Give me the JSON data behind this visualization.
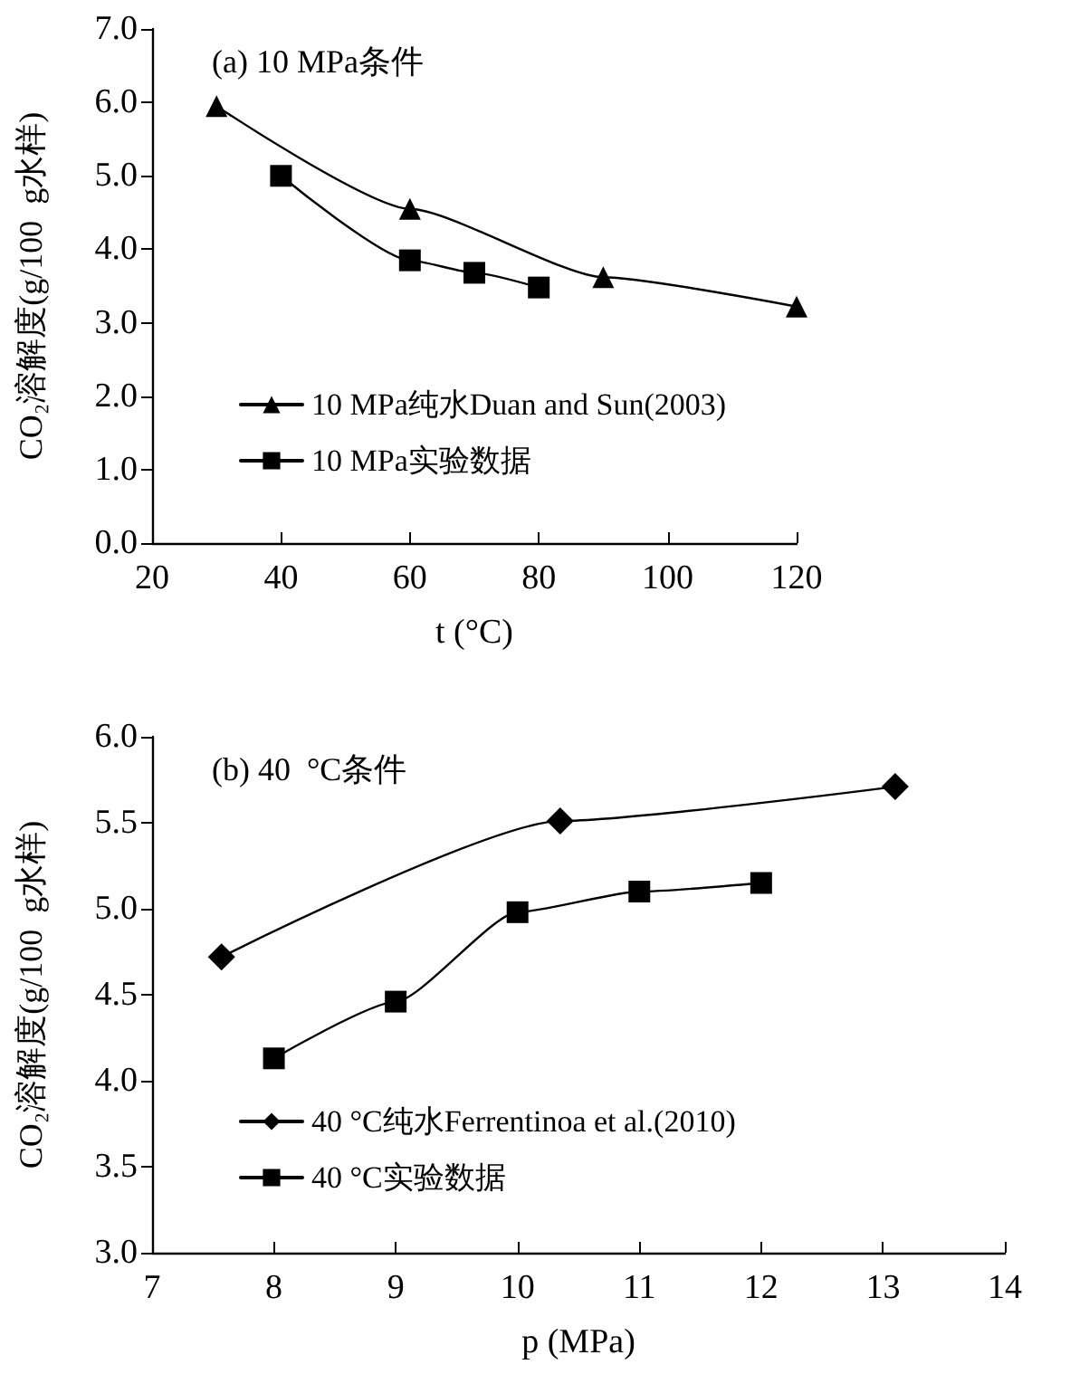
{
  "chart_data": [
    {
      "type": "line",
      "title": "(a) 10 MPa条件",
      "xlabel": "t (°C)",
      "ylabel": "CO₂溶解度(g/100  g水样)",
      "xlim": [
        20,
        120
      ],
      "xticks": [
        20,
        40,
        60,
        80,
        100,
        120
      ],
      "ylim": [
        0,
        7
      ],
      "yticks": [
        {
          "value": 0,
          "label": "0.0"
        },
        {
          "value": 1,
          "label": "1.0"
        },
        {
          "value": 2,
          "label": "2.0"
        },
        {
          "value": 3,
          "label": "3.0"
        },
        {
          "value": 4,
          "label": "4.0"
        },
        {
          "value": 5,
          "label": "5.0"
        },
        {
          "value": 6,
          "label": "6.0"
        },
        {
          "value": 7,
          "label": "7.0"
        }
      ],
      "grid": false,
      "legend": "bottom left",
      "line_style": "solid",
      "series": [
        {
          "name": "10 MPa纯水Duan and Sun(2003)",
          "color": "#000000",
          "marker": "triangle",
          "x": [
            30,
            60,
            90,
            120
          ],
          "values": [
            5.95,
            4.55,
            3.62,
            3.22
          ]
        },
        {
          "name": "10 MPa实验数据",
          "color": "#000000",
          "marker": "square",
          "x": [
            40,
            60,
            70,
            80
          ],
          "values": [
            5.0,
            3.85,
            3.68,
            3.48
          ]
        }
      ]
    },
    {
      "type": "line",
      "title": "(b) 40  °C条件",
      "xlabel": "p (MPa)",
      "ylabel": "CO₂溶解度(g/100  g水样)",
      "xlim": [
        7,
        14
      ],
      "xticks": [
        7,
        8,
        9,
        10,
        11,
        12,
        13,
        14
      ],
      "ylim": [
        3,
        6
      ],
      "yticks": [
        {
          "value": 3,
          "label": "3.0"
        },
        3.5,
        {
          "value": 4,
          "label": "4.0"
        },
        4.5,
        {
          "value": 5,
          "label": "5.0"
        },
        5.5,
        {
          "value": 6,
          "label": "6.0"
        }
      ],
      "grid": false,
      "legend": "bottom left",
      "line_style": "solid",
      "series": [
        {
          "name": "40 °C纯水Ferrentinoa et al.(2010)",
          "color": "#000000",
          "marker": "diamond",
          "x": [
            7.57,
            10.35,
            13.1
          ],
          "values": [
            4.72,
            5.51,
            5.71
          ]
        },
        {
          "name": "40 °C实验数据",
          "color": "#000000",
          "marker": "square",
          "x": [
            8,
            9,
            10,
            11,
            12
          ],
          "values": [
            4.13,
            4.46,
            4.98,
            5.1,
            5.15
          ]
        }
      ]
    }
  ]
}
